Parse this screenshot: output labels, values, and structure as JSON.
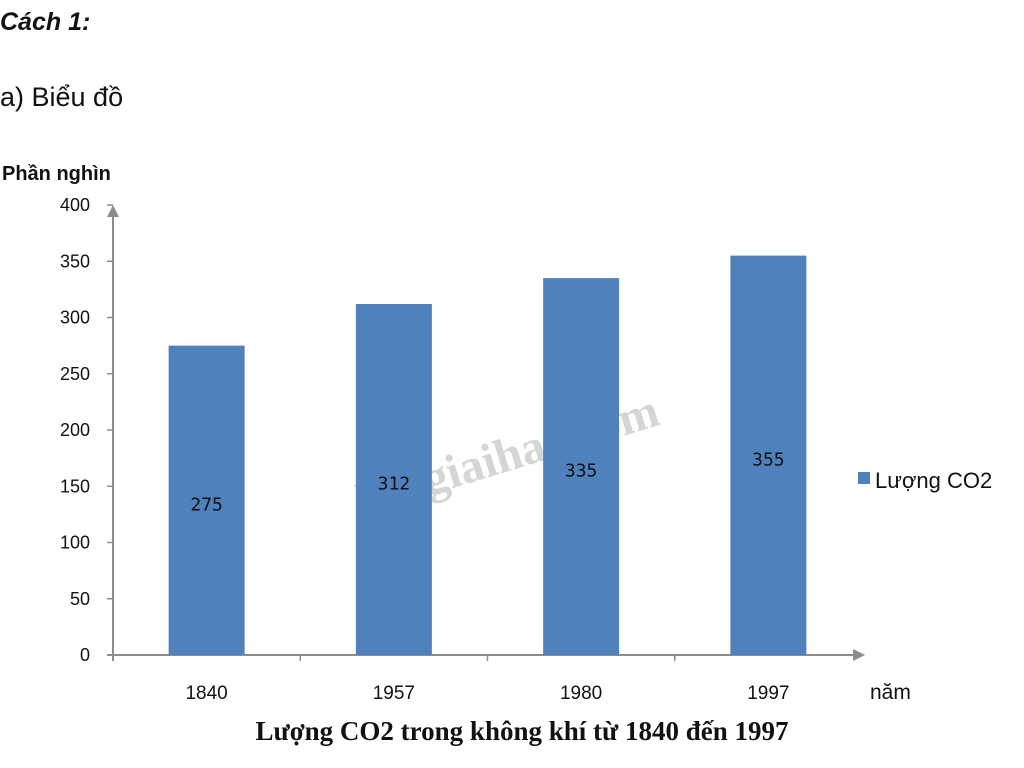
{
  "page": {
    "heading": "Cách 1:",
    "subheading": "a) Biểu đồ"
  },
  "watermark": "Loigiaihay.com",
  "colors": {
    "bar": "#4F81BD",
    "axis": "#8c8c8c",
    "background": "#ffffff"
  },
  "chart_data": {
    "type": "bar",
    "title": "Lượng CO2 trong không khí từ 1840 đến 1997",
    "ylabel": "Phần nghìn",
    "xlabel": "năm",
    "categories": [
      "1840",
      "1957",
      "1980",
      "1997"
    ],
    "series": [
      {
        "name": "Lượng CO2",
        "values": [
          275,
          312,
          335,
          355
        ]
      }
    ],
    "data_labels": [
      "275",
      "312",
      "335",
      "355"
    ],
    "ylim": [
      0,
      400
    ],
    "yticks": [
      0,
      50,
      100,
      150,
      200,
      250,
      300,
      350,
      400
    ],
    "grid": false,
    "legend": "right"
  }
}
